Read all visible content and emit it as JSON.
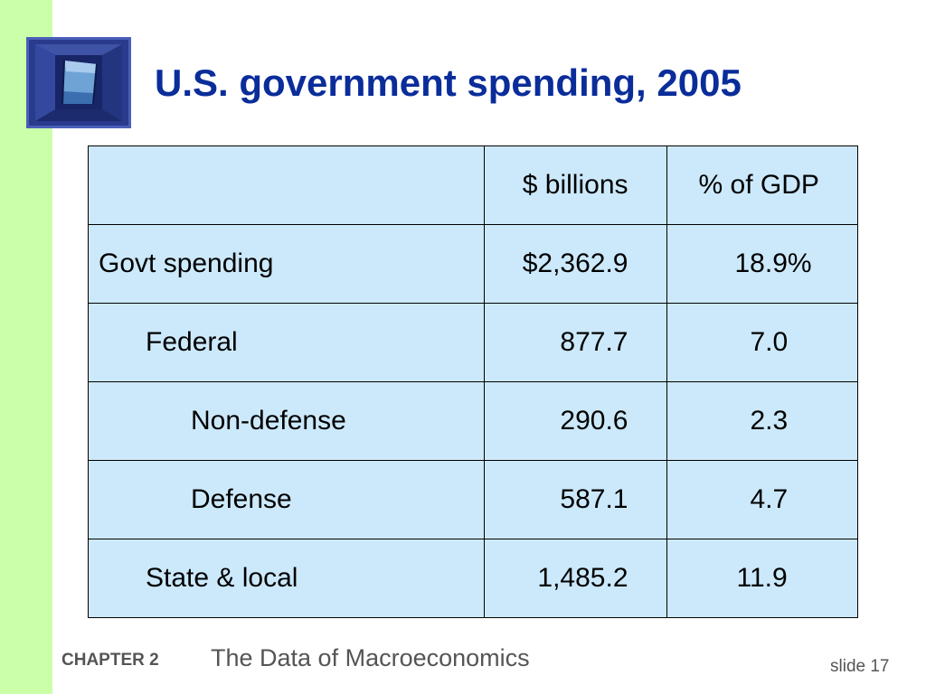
{
  "slide": {
    "title": "U.S. government spending, 2005",
    "table": {
      "headers": [
        "",
        "$ billions",
        "% of GDP"
      ],
      "rows": [
        {
          "label": "Govt spending",
          "billions": "$2,362.9",
          "gdp": "18.9%"
        },
        {
          "label": "Federal",
          "billions": "877.7",
          "gdp": "7.0"
        },
        {
          "label": "Non-defense",
          "billions": "290.6",
          "gdp": "2.3"
        },
        {
          "label": "Defense",
          "billions": "587.1",
          "gdp": "4.7"
        },
        {
          "label": "State & local",
          "billions": "1,485.2",
          "gdp": "11.9"
        }
      ]
    },
    "footer": {
      "chapter": "CHAPTER 2",
      "subtitle": "The Data of Macroeconomics",
      "slide_number": "slide 17"
    }
  },
  "colors": {
    "left_bar": "#ccffaa",
    "title": "#0a2d9a",
    "table_fill": "#cce9fb",
    "footer_text": "#555555"
  },
  "icons": {
    "logo": "window-frame-logo-icon"
  }
}
